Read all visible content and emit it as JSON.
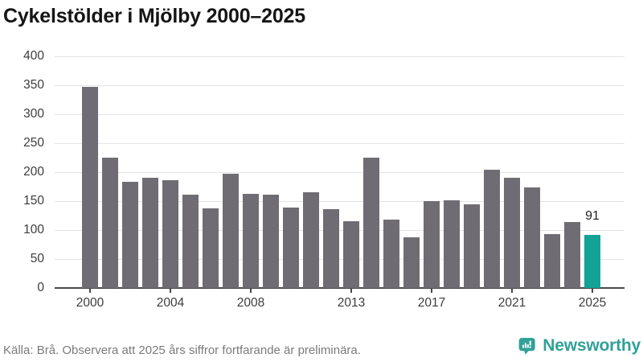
{
  "title": "Cykelstölder i Mjölby 2000–2025",
  "footer": {
    "source_note": "Källa: Brå. Observera att 2025 års siffror fortfarande är preliminära."
  },
  "branding": {
    "name": "Newsworthy",
    "icon": "newsworthy-speech-bubble-bar-chart-icon",
    "color": "#31a198"
  },
  "colors": {
    "bar": "#6f6d73",
    "highlight_bar": "#12a296",
    "grid": "#e4e4e4",
    "axis": "#4a4a4c",
    "title_text": "#151515",
    "tick_label_text": "#3d3d3d",
    "footer_text": "#7b7b7b"
  },
  "chart_data": {
    "type": "bar",
    "title": "Cykelstölder i Mjölby 2000–2025",
    "categories": [
      2000,
      2001,
      2002,
      2003,
      2004,
      2005,
      2006,
      2007,
      2008,
      2009,
      2010,
      2011,
      2012,
      2013,
      2014,
      2015,
      2016,
      2017,
      2018,
      2019,
      2020,
      2021,
      2022,
      2023,
      2024,
      2025
    ],
    "values": [
      347,
      225,
      183,
      190,
      186,
      161,
      138,
      197,
      162,
      161,
      139,
      165,
      136,
      115,
      225,
      118,
      88,
      150,
      151,
      144,
      204,
      190,
      174,
      93,
      114,
      91
    ],
    "highlight_category": 2025,
    "highlight_value_label": "91",
    "y_ticks": [
      0,
      50,
      100,
      150,
      200,
      250,
      300,
      350,
      400
    ],
    "x_tick_labels": [
      "2000",
      "2004",
      "2008",
      "2013",
      "2017",
      "2021",
      "2025"
    ],
    "xlabel": "",
    "ylabel": "",
    "ylim": [
      0,
      400
    ],
    "grid": "horizontal",
    "legend": "none"
  }
}
